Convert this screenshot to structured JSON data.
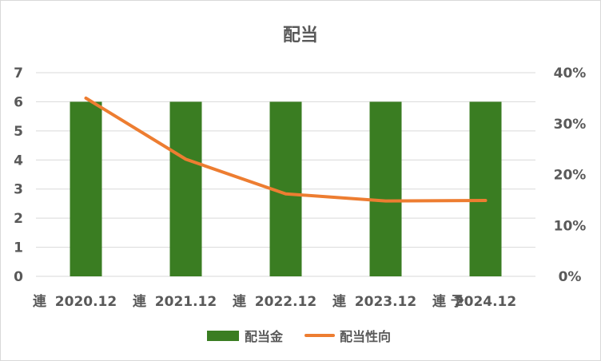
{
  "chart_data": {
    "type": "bar",
    "title": "配当",
    "categories": [
      "連 　2020.12",
      "連 2021.12",
      "連 2022.12",
      "連 2023.12",
      "連 予 2024.12"
    ],
    "category_ticks": [
      {
        "prefix": "連",
        "label": "2020.12"
      },
      {
        "prefix": "連",
        "label": "2021.12"
      },
      {
        "prefix": "連",
        "label": "2022.12"
      },
      {
        "prefix": "連",
        "label": "2023.12"
      },
      {
        "prefix": "連 予",
        "label": "2024.12"
      }
    ],
    "series": [
      {
        "name": "配当金",
        "type": "bar",
        "axis": "left",
        "color": "#3a7d22",
        "values": [
          6,
          6,
          6,
          6,
          6
        ]
      },
      {
        "name": "配当性向",
        "type": "line",
        "axis": "right",
        "color": "#ed7d31",
        "values": [
          0.35,
          0.23,
          0.162,
          0.148,
          0.149
        ]
      }
    ],
    "y_left": {
      "min": 0,
      "max": 7,
      "ticks": [
        "0",
        "1",
        "2",
        "3",
        "4",
        "5",
        "6",
        "7"
      ]
    },
    "y_right": {
      "min": 0,
      "max": 0.4,
      "ticks": [
        "0%",
        "10%",
        "20%",
        "30%",
        "40%"
      ]
    },
    "grid": true,
    "legend_position": "bottom"
  }
}
